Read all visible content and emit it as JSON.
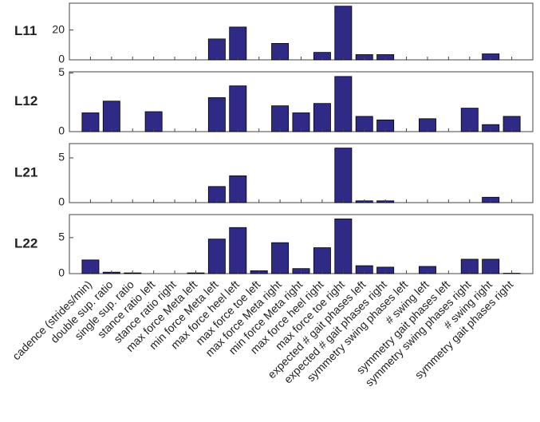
{
  "chart_data": [
    {
      "type": "bar",
      "title": "L11",
      "color": "#2e2a86",
      "ylim": [
        0,
        38
      ],
      "yticks": [
        0,
        20
      ],
      "values": [
        0,
        0,
        0,
        0,
        0,
        0,
        14,
        22,
        0,
        11,
        0,
        5,
        36,
        3.5,
        3.5,
        0,
        0,
        0,
        0,
        4,
        0
      ]
    },
    {
      "type": "bar",
      "title": "L12",
      "color": "#2e2a86",
      "ylim": [
        0,
        5.1
      ],
      "yticks": [
        0,
        5
      ],
      "values": [
        1.6,
        2.6,
        0,
        1.7,
        0,
        0,
        2.9,
        3.9,
        0,
        2.2,
        1.6,
        2.4,
        4.7,
        1.3,
        1.0,
        0,
        1.1,
        0,
        2.0,
        0.6,
        1.3
      ]
    },
    {
      "type": "bar",
      "title": "L21",
      "color": "#2e2a86",
      "ylim": [
        0,
        6.6
      ],
      "yticks": [
        0,
        5
      ],
      "values": [
        0,
        0,
        0,
        0,
        0,
        0,
        1.8,
        3.0,
        0,
        0,
        0,
        0,
        6.1,
        0.2,
        0.2,
        0,
        0,
        0,
        0,
        0.6,
        0
      ]
    },
    {
      "type": "bar",
      "title": "L22",
      "color": "#2e2a86",
      "ylim": [
        0,
        8.2
      ],
      "yticks": [
        0,
        5
      ],
      "values": [
        1.9,
        0.2,
        0.1,
        0,
        0,
        0.1,
        4.8,
        6.4,
        0.4,
        4.3,
        0.7,
        3.6,
        7.6,
        1.1,
        0.9,
        0,
        1.0,
        0,
        2.0,
        2.0,
        0.05
      ],
      "categories": [
        "cadence (strides/min)",
        "double sup. ratio",
        "single sup. ratio",
        "stance ratio left",
        "stance ratio right",
        "max force Meta left",
        "min force Meta left",
        "max force heel left",
        "max force toe left",
        "max force Meta right",
        "min force Meta right",
        "max force heel right",
        "max force toe right",
        "expected # gait phases left",
        "expected # gait phases right",
        "symmetry swing phases left",
        "# swing left",
        "symmetry gait phases left",
        "symmetry swing phases right",
        "# swing right",
        "symmetry gait phases right"
      ]
    }
  ]
}
